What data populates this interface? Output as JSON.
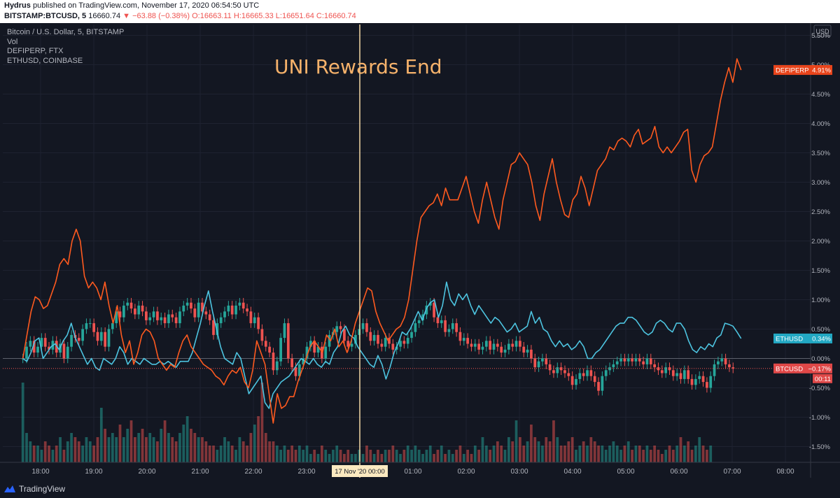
{
  "header": {
    "author": "Hydrus",
    "published": "published on TradingView.com, November 17, 2020 06:54:50 UTC",
    "symbol": "BITSTAMP:BTCUSD, 5",
    "price": "16660.74",
    "change": "▼ −63.88 (−0.38%)",
    "ohlc": "O:16663.11 H:16665.33 L:16651.64 C:16660.74"
  },
  "legend": {
    "main": "Bitcoin / U.S. Dollar, 5, BITSTAMP",
    "vol": "Vol",
    "s2": "DEFIPERP, FTX",
    "s3": "ETHUSD, COINBASE"
  },
  "footer": {
    "brand": "TradingView"
  },
  "colors": {
    "background": "#131722",
    "up": "#26a69a",
    "down": "#ef5350",
    "defiperp": "#ff5a1f",
    "ethusd": "#4dc4e0",
    "annotation": "#f6b26b",
    "vline": "#f3d9a4",
    "grid": "#1e2230"
  },
  "chart_data": {
    "type": "line",
    "y_scale": "percent",
    "currency_label": "USD",
    "yticks": [
      "5.50%",
      "5.00%",
      "4.50%",
      "4.00%",
      "3.50%",
      "3.00%",
      "2.50%",
      "2.00%",
      "1.50%",
      "1.00%",
      "0.50%",
      "0.00%",
      "-0.50%",
      "-1.00%",
      "-1.50%"
    ],
    "ylim": [
      -1.75,
      5.75
    ],
    "xticks": [
      "18:00",
      "19:00",
      "20:00",
      "21:00",
      "22:00",
      "23:00",
      "17 Nov '20",
      "01:00",
      "02:00",
      "03:00",
      "04:00",
      "05:00",
      "06:00",
      "07:00",
      "08:00"
    ],
    "x_axis_marker": "17 Nov '20  00:00",
    "x_start": "17:40",
    "annotation": {
      "text": "UNI Rewards End",
      "at": "00:00"
    },
    "series": [
      {
        "name": "DEFIPERP",
        "last_label": "4.91%",
        "last_value": 4.91,
        "values": [
          0.0,
          0.4,
          0.8,
          1.05,
          1.0,
          0.85,
          0.9,
          1.1,
          1.3,
          1.6,
          1.7,
          1.6,
          2.0,
          2.2,
          2.0,
          1.4,
          1.2,
          1.3,
          1.2,
          1.0,
          1.3,
          0.9,
          0.6,
          0.9,
          0.4,
          0.1,
          0.3,
          -0.1,
          0.1,
          0.4,
          0.5,
          0.45,
          0.3,
          0.0,
          -0.1,
          -0.2,
          -0.1,
          -0.15,
          0.1,
          0.3,
          0.4,
          0.2,
          0.1,
          0.0,
          -0.1,
          -0.15,
          -0.2,
          -0.3,
          -0.35,
          -0.45,
          -0.3,
          -0.2,
          -0.25,
          -0.15,
          -0.4,
          -0.5,
          -0.2,
          0.3,
          0.1,
          -0.1,
          -0.6,
          -1.1,
          -0.6,
          -0.85,
          -0.8,
          -0.65,
          -0.65,
          -0.4,
          -0.2,
          0.0,
          0.2,
          0.3,
          0.2,
          0.1,
          0.4,
          0.3,
          0.5,
          0.2,
          0.3,
          0.1,
          0.3,
          0.6,
          0.8,
          1.0,
          1.2,
          1.15,
          0.8,
          0.6,
          0.45,
          0.3,
          0.4,
          0.5,
          0.55,
          0.7,
          1.0,
          1.5,
          2.0,
          2.4,
          2.5,
          2.6,
          2.65,
          2.8,
          2.6,
          2.9,
          2.7,
          2.7,
          2.7,
          2.9,
          3.1,
          2.8,
          2.5,
          2.3,
          2.7,
          3.0,
          2.7,
          2.4,
          2.2,
          2.7,
          3.0,
          3.3,
          3.35,
          3.5,
          3.4,
          3.3,
          3.0,
          2.6,
          2.35,
          2.8,
          3.1,
          3.4,
          3.0,
          2.7,
          2.45,
          2.4,
          2.7,
          2.8,
          3.1,
          2.9,
          2.6,
          2.9,
          3.2,
          3.3,
          3.4,
          3.6,
          3.55,
          3.7,
          3.75,
          3.7,
          3.6,
          3.8,
          3.9,
          3.65,
          3.7,
          3.75,
          3.95,
          3.6,
          3.5,
          3.6,
          3.5,
          3.6,
          3.7,
          3.85,
          3.9,
          3.2,
          3.0,
          3.3,
          3.45,
          3.5,
          3.6,
          4.0,
          4.4,
          4.7,
          4.95,
          4.7,
          5.1,
          4.91
        ]
      },
      {
        "name": "ETHUSD",
        "last_label": "0.34%",
        "last_value": 0.34,
        "values": [
          0.0,
          -0.05,
          0.1,
          0.3,
          0.35,
          0.0,
          0.1,
          0.2,
          0.25,
          0.15,
          0.3,
          0.4,
          0.6,
          0.35,
          0.2,
          0.05,
          -0.1,
          0.0,
          -0.15,
          -0.2,
          0.0,
          -0.05,
          -0.1,
          0.0,
          0.2,
          0.1,
          -0.1,
          0.0,
          -0.05,
          -0.1,
          0.0,
          -0.05,
          -0.1,
          -0.1,
          -0.05,
          -0.1,
          -0.05,
          -0.1,
          -0.15,
          -0.05,
          -0.05,
          -0.05,
          0.1,
          0.35,
          0.6,
          0.9,
          1.15,
          0.8,
          0.5,
          0.2,
          0.0,
          -0.05,
          -0.1,
          0.1,
          0.0,
          -0.3,
          -0.6,
          -0.5,
          -0.4,
          -0.3,
          -0.75,
          -0.85,
          -0.6,
          -0.5,
          -0.4,
          -0.35,
          -0.3,
          -0.2,
          -0.1,
          0.0,
          -0.05,
          -0.1,
          0.0,
          -0.1,
          -0.15,
          -0.05,
          -0.1,
          0.1,
          0.2,
          0.45,
          0.55,
          0.4,
          0.35,
          0.2,
          0.1,
          0.0,
          -0.1,
          -0.15,
          0.05,
          -0.1,
          -0.35,
          -0.15,
          0.1,
          0.25,
          0.45,
          0.4,
          0.5,
          0.65,
          0.8,
          0.65,
          0.85,
          0.95,
          1.0,
          0.7,
          0.9,
          1.3,
          1.0,
          0.9,
          1.1,
          1.0,
          1.1,
          0.9,
          0.75,
          0.9,
          0.8,
          0.7,
          0.6,
          0.7,
          0.65,
          0.55,
          0.45,
          0.5,
          0.6,
          0.45,
          0.5,
          0.55,
          0.8,
          0.6,
          0.7,
          0.5,
          0.45,
          0.3,
          0.2,
          0.3,
          0.2,
          0.25,
          0.15,
          0.2,
          0.3,
          0.2,
          0.0,
          0.0,
          0.1,
          0.15,
          0.25,
          0.35,
          0.45,
          0.55,
          0.6,
          0.6,
          0.7,
          0.7,
          0.65,
          0.55,
          0.45,
          0.4,
          0.45,
          0.6,
          0.65,
          0.6,
          0.5,
          0.45,
          0.6,
          0.6,
          0.5,
          0.3,
          0.15,
          0.1,
          0.2,
          0.15,
          0.25,
          0.2,
          0.35,
          0.4,
          0.6,
          0.58,
          0.55,
          0.45,
          0.34
        ]
      },
      {
        "name": "BTCUSD",
        "type": "candlestick",
        "last_label": "−0.17%",
        "last_value": -0.17,
        "countdown": "00:11",
        "closes": [
          0.0,
          0.2,
          0.3,
          0.1,
          0.2,
          0.35,
          0.2,
          0.15,
          0.3,
          0.1,
          0.25,
          0.0,
          0.2,
          0.4,
          0.35,
          0.3,
          0.5,
          0.6,
          0.6,
          0.45,
          0.3,
          0.45,
          0.2,
          0.5,
          0.6,
          0.8,
          0.7,
          0.9,
          0.95,
          0.85,
          0.75,
          0.9,
          0.8,
          0.65,
          0.7,
          0.8,
          0.65,
          0.7,
          0.6,
          0.75,
          0.7,
          0.6,
          0.8,
          0.9,
          0.95,
          0.85,
          0.7,
          0.95,
          0.8,
          0.75,
          0.65,
          0.4,
          0.6,
          0.7,
          0.8,
          0.9,
          0.75,
          0.9,
          0.95,
          0.85,
          0.8,
          0.6,
          0.7,
          0.5,
          0.3,
          0.2,
          0.1,
          -0.2,
          -0.05,
          0.35,
          0.6,
          0.0,
          -0.15,
          -0.3,
          -0.1,
          0.0,
          0.2,
          0.3,
          0.1,
          0.2,
          0.0,
          0.2,
          0.4,
          0.45,
          0.55,
          0.5,
          0.3,
          0.2,
          0.25,
          0.4,
          0.5,
          0.6,
          0.45,
          0.3,
          0.4,
          0.25,
          0.2,
          0.35,
          0.25,
          0.15,
          0.2,
          0.3,
          0.25,
          0.35,
          0.45,
          0.6,
          0.65,
          0.75,
          0.9,
          0.95,
          0.7,
          0.6,
          0.65,
          0.45,
          0.5,
          0.6,
          0.45,
          0.3,
          0.35,
          0.25,
          0.2,
          0.25,
          0.15,
          0.2,
          0.3,
          0.15,
          0.25,
          0.2,
          0.1,
          0.15,
          0.25,
          0.2,
          0.3,
          0.2,
          0.1,
          0.15,
          0.0,
          -0.15,
          -0.05,
          0.0,
          -0.1,
          -0.2,
          -0.25,
          -0.15,
          -0.2,
          -0.25,
          -0.3,
          -0.45,
          -0.35,
          -0.25,
          -0.3,
          -0.2,
          -0.3,
          -0.4,
          -0.55,
          -0.3,
          -0.2,
          -0.15,
          -0.1,
          -0.05,
          0.0,
          -0.05,
          0.0,
          -0.05,
          0.0,
          -0.05,
          -0.1,
          0.0,
          -0.1,
          -0.15,
          -0.2,
          -0.25,
          -0.15,
          -0.2,
          -0.3,
          -0.25,
          -0.35,
          -0.2,
          -0.35,
          -0.45,
          -0.35,
          -0.3,
          -0.4,
          -0.5,
          -0.3,
          -0.1,
          -0.05,
          0.0,
          -0.1,
          -0.15,
          -0.17
        ],
        "volumes": [
          0.95,
          0.35,
          0.25,
          0.2,
          0.2,
          0.15,
          0.25,
          0.2,
          0.15,
          0.2,
          0.3,
          0.15,
          0.25,
          0.35,
          0.3,
          0.25,
          0.2,
          0.3,
          0.25,
          0.2,
          0.3,
          0.65,
          0.4,
          0.3,
          0.35,
          0.3,
          0.45,
          0.3,
          0.4,
          0.5,
          0.3,
          0.35,
          0.4,
          0.3,
          0.35,
          0.3,
          0.25,
          0.4,
          0.5,
          0.35,
          0.3,
          0.25,
          0.35,
          0.45,
          0.55,
          0.4,
          0.35,
          0.3,
          0.3,
          0.25,
          0.2,
          0.2,
          0.15,
          0.2,
          0.3,
          0.25,
          0.2,
          0.15,
          0.3,
          0.25,
          0.2,
          0.35,
          0.45,
          0.55,
          0.95,
          0.35,
          0.25,
          0.25,
          0.2,
          0.15,
          0.2,
          0.15,
          0.2,
          0.15,
          0.2,
          0.15,
          0.2,
          0.1,
          0.15,
          0.1,
          0.2,
          0.15,
          0.1,
          0.15,
          0.2,
          0.15,
          0.1,
          0.15,
          0.1,
          0.1,
          0.15,
          0.1,
          0.2,
          0.15,
          0.1,
          0.15,
          0.1,
          0.15,
          0.15,
          0.2,
          0.15,
          0.1,
          0.15,
          0.2,
          0.15,
          0.2,
          0.15,
          0.1,
          0.15,
          0.2,
          0.1,
          0.15,
          0.2,
          0.1,
          0.15,
          0.1,
          0.15,
          0.2,
          0.1,
          0.15,
          0.1,
          0.2,
          0.15,
          0.3,
          0.2,
          0.15,
          0.2,
          0.25,
          0.2,
          0.15,
          0.3,
          0.25,
          0.5,
          0.3,
          0.2,
          0.25,
          0.45,
          0.3,
          0.25,
          0.2,
          0.3,
          0.25,
          0.5,
          0.3,
          0.2,
          0.2,
          0.25,
          0.3,
          0.15,
          0.2,
          0.25,
          0.2,
          0.3,
          0.25,
          0.2,
          0.2,
          0.15,
          0.2,
          0.25,
          0.2,
          0.15,
          0.2,
          0.25,
          0.15,
          0.2,
          0.2,
          0.15,
          0.2,
          0.15,
          0.2,
          0.15,
          0.1,
          0.15,
          0.2,
          0.15,
          0.2,
          0.3,
          0.2,
          0.25,
          0.15,
          0.2,
          0.3,
          0.2,
          0.15,
          0.2
        ]
      }
    ]
  }
}
